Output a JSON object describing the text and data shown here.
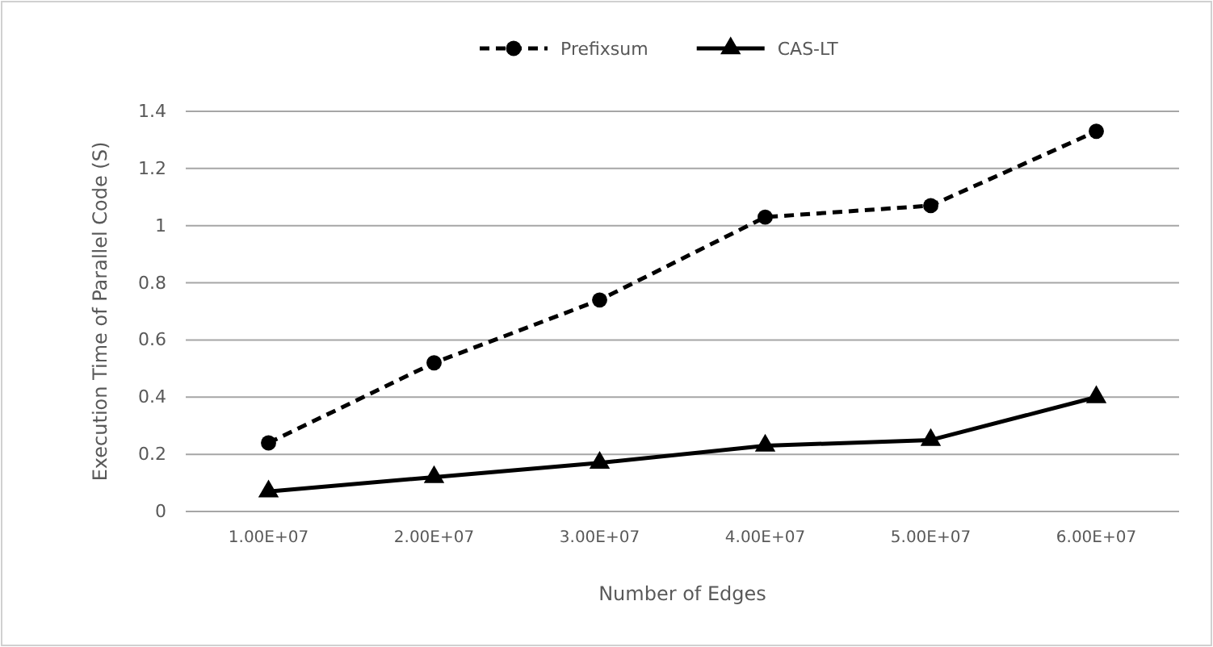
{
  "chart_data": {
    "type": "line",
    "xlabel": "Number of Edges",
    "ylabel": "Execution Time of Parallel Code (S)",
    "categories": [
      "1.00E+07",
      "2.00E+07",
      "3.00E+07",
      "4.00E+07",
      "5.00E+07",
      "6.00E+07"
    ],
    "series": [
      {
        "name": "Prefixsum",
        "color": "#000000",
        "values": [
          0.24,
          0.52,
          0.74,
          1.03,
          1.07,
          1.33
        ],
        "marker": "circle",
        "line_style": "dashed"
      },
      {
        "name": "CAS-LT",
        "color": "#000000",
        "values": [
          0.07,
          0.12,
          0.17,
          0.23,
          0.25,
          0.4
        ],
        "marker": "triangle",
        "line_style": "solid"
      }
    ],
    "ylim": [
      0,
      1.4
    ],
    "yticks": [
      0,
      {
        "value": 0.2,
        "label": "0.2"
      },
      {
        "value": 0.4,
        "label": "0.4"
      },
      {
        "value": 0.6,
        "label": "0.6"
      },
      {
        "value": 0.8,
        "label": "0.8"
      },
      1,
      {
        "value": 1.2,
        "label": "1.2"
      },
      {
        "value": 1.4,
        "label": "1.4"
      }
    ],
    "grid": "y",
    "legend": "top"
  }
}
